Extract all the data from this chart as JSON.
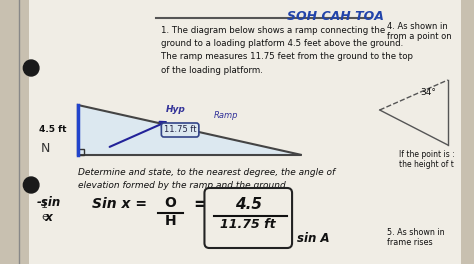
{
  "bg_color": "#c8c0b0",
  "paper_color": "#f0ede5",
  "title_text": "1. The diagram below shows a ramp connecting the\nground to a loading platform 4.5 feet above the ground.\nThe ramp measures 11.75 feet from the ground to the top\nof the loading platform.",
  "right_text": "4. As shown in\nfrom a point on",
  "diagram_label_hyp": "Hyp",
  "diagram_label_ramp": "Ramp",
  "diagram_label_45": "4.5 ft",
  "diagram_label_1175": "11.75 ft",
  "determine_text": "Determine and state, to the nearest degree, the angle of\nelevation formed by the ramp and the ground.",
  "sin_label_left": "-sin\n  x",
  "sin_eq": "Sin x =",
  "fraction_top_o": "O",
  "fraction_bot_h": "H",
  "equals": "=",
  "frac_num": "4.5",
  "frac_den": "11.75 ft",
  "sin_a_label": "sin A",
  "question5_text": "5. As shown in\nframe rises",
  "right_angle_label": "34°",
  "if_point_text": "If the point is :\nthe height of t",
  "sohcahtoa_text": "SOH CAH TOA"
}
